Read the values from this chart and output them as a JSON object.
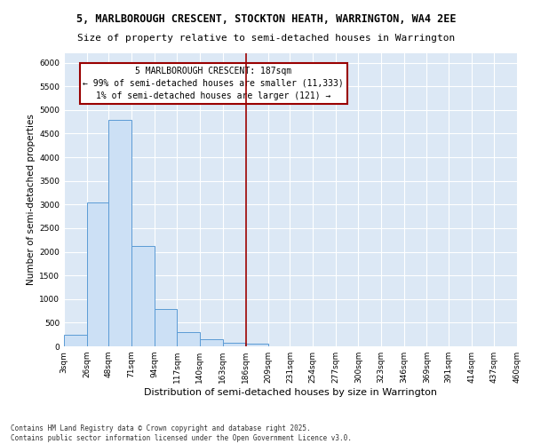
{
  "title": "5, MARLBOROUGH CRESCENT, STOCKTON HEATH, WARRINGTON, WA4 2EE",
  "subtitle": "Size of property relative to semi-detached houses in Warrington",
  "xlabel": "Distribution of semi-detached houses by size in Warrington",
  "ylabel": "Number of semi-detached properties",
  "bar_edges": [
    3,
    26,
    48,
    71,
    94,
    117,
    140,
    163,
    186,
    209,
    231,
    254,
    277,
    300,
    323,
    346,
    369,
    391,
    414,
    437,
    460
  ],
  "bar_heights": [
    250,
    3050,
    4800,
    2130,
    780,
    310,
    150,
    80,
    50,
    0,
    0,
    0,
    0,
    0,
    0,
    0,
    0,
    0,
    0,
    0
  ],
  "bar_color": "#cce0f5",
  "bar_edge_color": "#5b9bd5",
  "vline_x": 187,
  "vline_color": "#990000",
  "annotation_title": "5 MARLBOROUGH CRESCENT: 187sqm",
  "annotation_line1": "← 99% of semi-detached houses are smaller (11,333)",
  "annotation_line2": "1% of semi-detached houses are larger (121) →",
  "annotation_box_color": "#990000",
  "ylim": [
    0,
    6200
  ],
  "yticks": [
    0,
    500,
    1000,
    1500,
    2000,
    2500,
    3000,
    3500,
    4000,
    4500,
    5000,
    5500,
    6000
  ],
  "background_color": "#dce8f5",
  "grid_color": "#ffffff",
  "fig_background": "#ffffff",
  "footnote": "Contains HM Land Registry data © Crown copyright and database right 2025.\nContains public sector information licensed under the Open Government Licence v3.0.",
  "title_fontsize": 8.5,
  "subtitle_fontsize": 8,
  "xlabel_fontsize": 8,
  "ylabel_fontsize": 7.5,
  "tick_fontsize": 6.5,
  "annotation_fontsize": 7,
  "footnote_fontsize": 5.5
}
